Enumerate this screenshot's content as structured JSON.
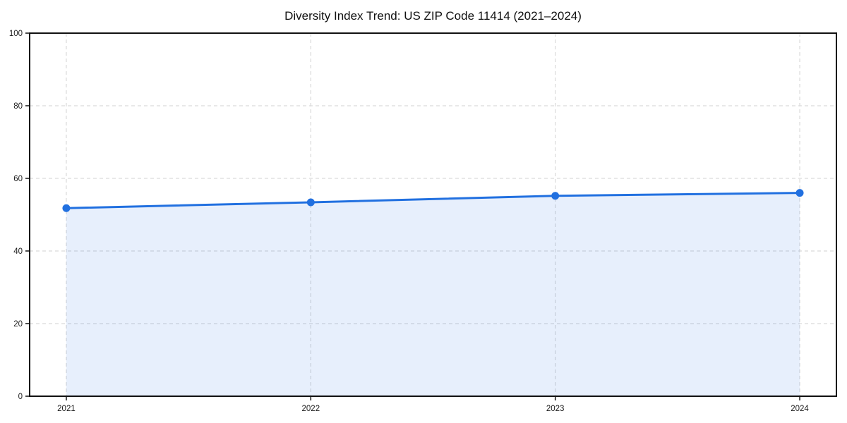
{
  "chart_data": {
    "type": "area",
    "title": "Diversity Index Trend: US ZIP Code 11414 (2021–2024)",
    "categories": [
      "2021",
      "2022",
      "2023",
      "2024"
    ],
    "values": [
      51.8,
      53.4,
      55.2,
      56.0
    ],
    "series_name": "Diversity Index",
    "xlabel": "",
    "ylabel": "",
    "ylim": [
      0,
      100
    ],
    "yticks": [
      0,
      20,
      40,
      60,
      80,
      100
    ],
    "grid": true,
    "grid_style": "dashed",
    "legend": "none",
    "colors": {
      "line": "#2170e0",
      "marker": "#2170e0",
      "fill": "#2170e0",
      "fill_opacity": 0.11,
      "gridline": "#d9d9d9",
      "spine": "#111111",
      "tick_label": "#1a1a1a",
      "background": "#ffffff"
    }
  }
}
